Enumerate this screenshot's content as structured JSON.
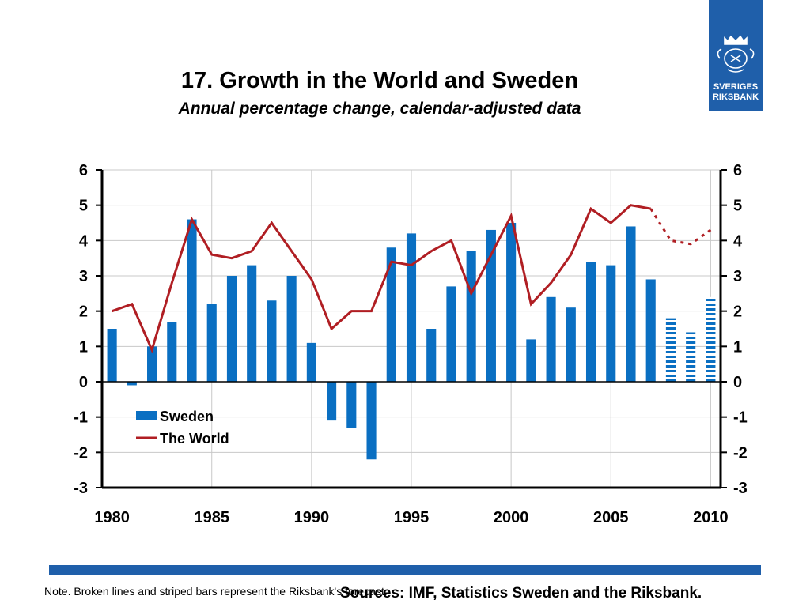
{
  "header": {
    "title": "17. Growth in the World and Sweden",
    "subtitle": "Annual percentage change, calendar-adjusted data"
  },
  "logo": {
    "line1": "SVERIGES",
    "line2": "RIKSBANK",
    "icon": "crown-seal-icon",
    "color": "#1f5faa"
  },
  "footer": {
    "note": "Note. Broken lines and striped bars represent the Riksbank's forecast.",
    "sources": "Sources: IMF, Statistics Sweden and the Riksbank."
  },
  "chart_data": {
    "type": "bar",
    "title": "17. Growth in the World and Sweden",
    "subtitle": "Annual percentage change, calendar-adjusted data",
    "x": [
      1980,
      1981,
      1982,
      1983,
      1984,
      1985,
      1986,
      1987,
      1988,
      1989,
      1990,
      1991,
      1992,
      1993,
      1994,
      1995,
      1996,
      1997,
      1998,
      1999,
      2000,
      2001,
      2002,
      2003,
      2004,
      2005,
      2006,
      2007,
      2008,
      2009,
      2010
    ],
    "x_ticks": [
      1980,
      1985,
      1990,
      1995,
      2000,
      2005,
      2010
    ],
    "ylim": [
      -3,
      6
    ],
    "y_ticks": [
      -3,
      -2,
      -1,
      0,
      1,
      2,
      3,
      4,
      5,
      6
    ],
    "grid": true,
    "legend_position": "bottom-left",
    "forecast_from": 2008,
    "series": [
      {
        "name": "Sweden",
        "type": "bar",
        "color": "#0a6fc2",
        "values": [
          1.5,
          -0.1,
          1.0,
          1.7,
          4.6,
          2.2,
          3.0,
          3.3,
          2.3,
          3.0,
          1.1,
          -1.1,
          -1.3,
          -2.2,
          3.8,
          4.2,
          1.5,
          2.7,
          3.7,
          4.3,
          4.5,
          1.2,
          2.4,
          2.1,
          3.4,
          3.3,
          4.4,
          2.9,
          1.8,
          1.4,
          2.4
        ]
      },
      {
        "name": "The World",
        "type": "line",
        "color": "#b01e23",
        "values": [
          2.0,
          2.2,
          0.9,
          2.8,
          4.6,
          3.6,
          3.5,
          3.7,
          4.5,
          3.7,
          2.9,
          1.5,
          2.0,
          2.0,
          3.4,
          3.3,
          3.7,
          4.0,
          2.5,
          3.6,
          4.7,
          2.2,
          2.8,
          3.6,
          4.9,
          4.5,
          5.0,
          4.9,
          4.0,
          3.9,
          4.3
        ]
      }
    ]
  }
}
